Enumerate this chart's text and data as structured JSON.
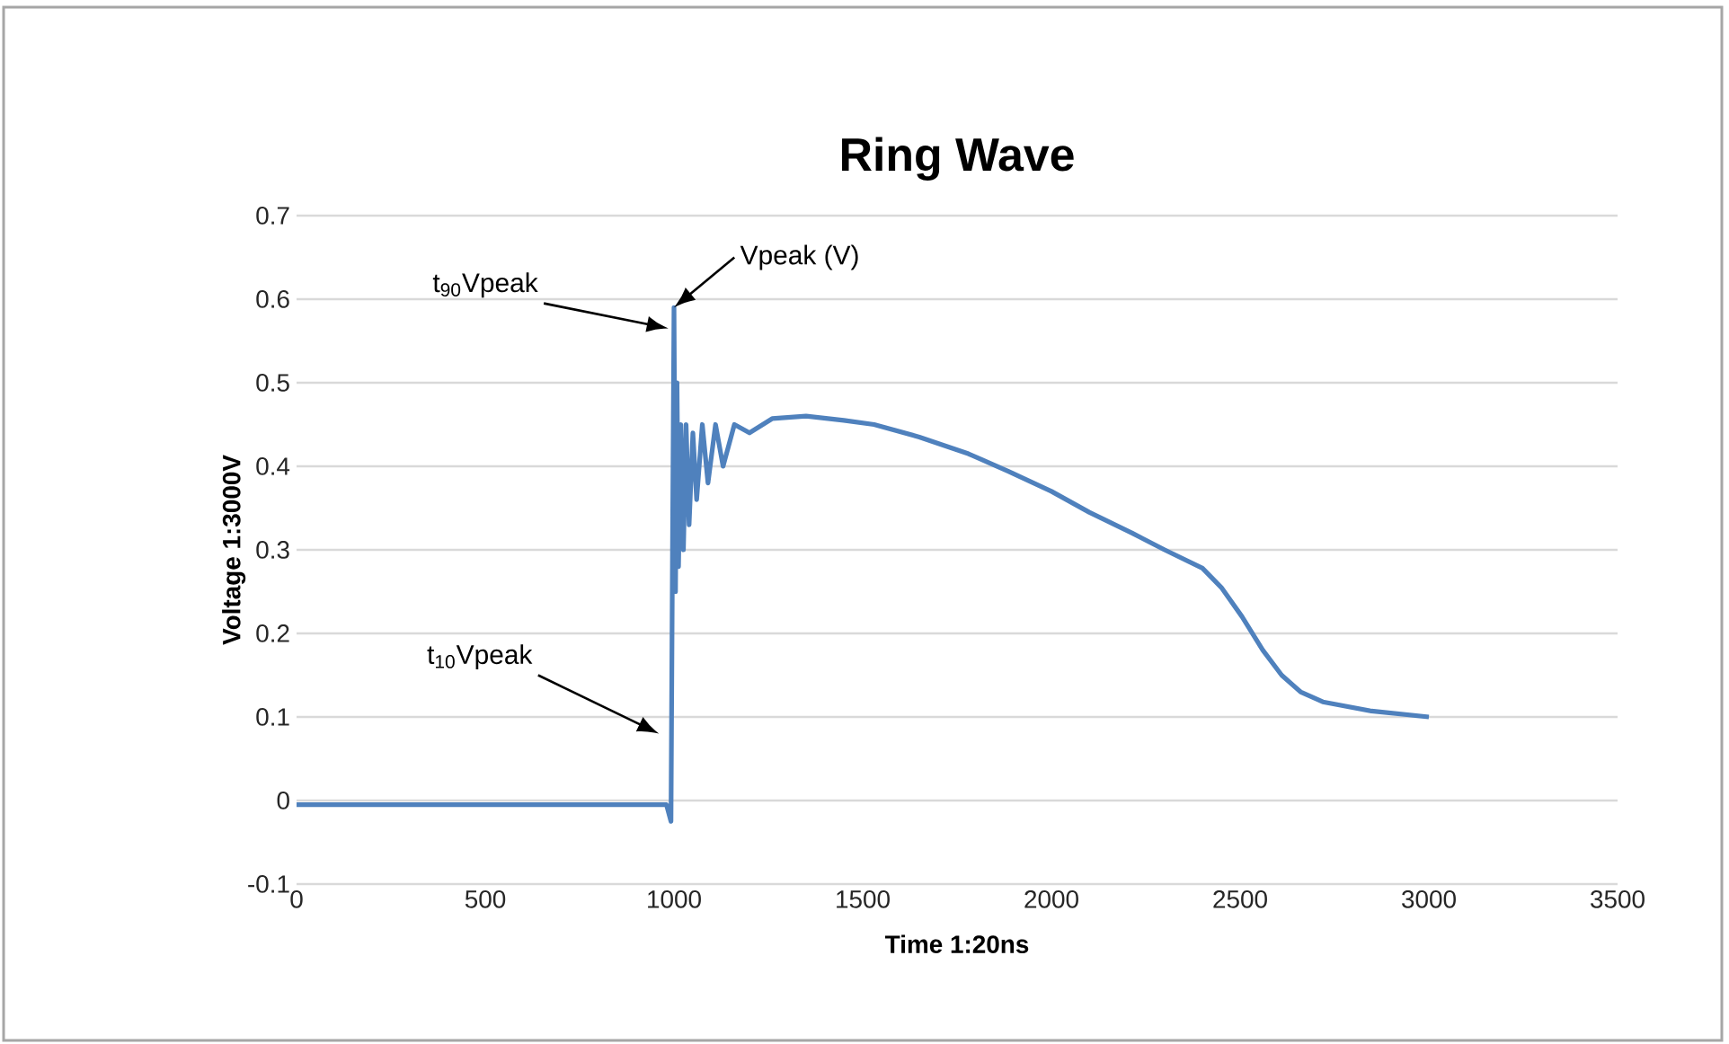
{
  "chart_data": {
    "type": "line",
    "title": "Ring Wave",
    "xlabel": "Time 1:20ns",
    "ylabel": "Voltage 1:3000V",
    "x": [
      0,
      200,
      400,
      600,
      800,
      980,
      992,
      996,
      1000,
      1004,
      1008,
      1012,
      1018,
      1025,
      1032,
      1040,
      1050,
      1060,
      1075,
      1090,
      1110,
      1130,
      1160,
      1200,
      1260,
      1350,
      1450,
      1530,
      1650,
      1780,
      1886,
      2000,
      2100,
      2214,
      2300,
      2400,
      2450,
      2505,
      2560,
      2610,
      2660,
      2719,
      2848,
      3000
    ],
    "series": [
      {
        "color": "#4f81bd",
        "values": [
          -0.005,
          -0.005,
          -0.005,
          -0.005,
          -0.005,
          -0.005,
          -0.025,
          0.3,
          0.59,
          0.25,
          0.5,
          0.28,
          0.45,
          0.3,
          0.45,
          0.33,
          0.44,
          0.36,
          0.45,
          0.38,
          0.45,
          0.4,
          0.45,
          0.44,
          0.457,
          0.46,
          0.455,
          0.45,
          0.435,
          0.415,
          0.394,
          0.37,
          0.345,
          0.32,
          0.3,
          0.278,
          0.255,
          0.22,
          0.18,
          0.15,
          0.13,
          0.118,
          0.107,
          0.1
        ]
      }
    ],
    "xlim": [
      0,
      3500
    ],
    "ylim": [
      -0.1,
      0.7
    ],
    "xticks": [
      0,
      500,
      1000,
      1500,
      2000,
      2500,
      3000,
      3500
    ],
    "yticks": [
      -0.1,
      0,
      0.1,
      0.2,
      0.3,
      0.4,
      0.5,
      0.6,
      0.7
    ],
    "grid": "y",
    "marker": "none",
    "line_style": "solid",
    "annotations": [
      "t$_{90}$Vpeak",
      {
        "text": "Vpeak (V)",
        "x": 1000,
        "y": 0.59
      },
      "t$_{10}$Vpeak"
    ]
  }
}
